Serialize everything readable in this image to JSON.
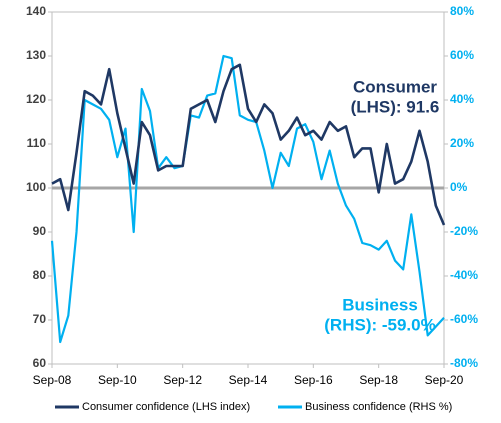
{
  "chart_data": {
    "type": "line",
    "categories": [
      "Sep-08",
      null,
      null,
      null,
      null,
      null,
      null,
      null,
      "Sep-10",
      null,
      null,
      null,
      null,
      null,
      null,
      null,
      "Sep-12",
      null,
      null,
      null,
      null,
      null,
      null,
      null,
      "Sep-14",
      null,
      null,
      null,
      null,
      null,
      null,
      null,
      "Sep-16",
      null,
      null,
      null,
      null,
      null,
      null,
      null,
      "Sep-18",
      null,
      null,
      null,
      null,
      null,
      null,
      null,
      "Sep-20"
    ],
    "series": [
      {
        "name": "Consumer confidence (LHS index)",
        "color": "#1f3864",
        "values": [
          101,
          102,
          95,
          108,
          122,
          121,
          119,
          127,
          117,
          109,
          101,
          115,
          112,
          104,
          105,
          105,
          105,
          118,
          119,
          120,
          115,
          122,
          127,
          128,
          118,
          115,
          119,
          117,
          111,
          113,
          116,
          112,
          113,
          111,
          115,
          113,
          114,
          107,
          109,
          109,
          99,
          110,
          101,
          102,
          106,
          113,
          106,
          96,
          91.6
        ]
      },
      {
        "name": "Business confidence (RHS %)",
        "color": "#00b0f0",
        "axis": "y2",
        "values": [
          -24,
          -70,
          -58,
          -20,
          40,
          38,
          36,
          31,
          14,
          27,
          -20,
          45,
          35,
          9,
          14,
          9,
          10,
          33,
          32,
          42,
          43,
          60,
          59,
          33,
          31,
          30,
          17,
          0,
          16,
          10,
          27,
          29,
          21,
          4,
          17,
          2,
          -8,
          -14,
          -25,
          -26,
          -28,
          -24,
          -33,
          -37,
          -12,
          -38,
          -67,
          -63,
          -59
        ]
      }
    ],
    "ylim": [
      60,
      140
    ],
    "yticks": [
      60,
      70,
      80,
      90,
      100,
      110,
      120,
      130,
      140
    ],
    "y2lim": [
      -80,
      80
    ],
    "y2ticks": [
      {
        "value": -80,
        "label": "-80%"
      },
      {
        "value": -60,
        "label": "-60%"
      },
      {
        "value": -40,
        "label": "-40%"
      },
      {
        "value": -20,
        "label": "-20%"
      },
      {
        "value": 0,
        "label": "0%"
      },
      {
        "value": 20,
        "label": "20%"
      },
      {
        "value": 40,
        "label": "40%"
      },
      {
        "value": 60,
        "label": "60%"
      },
      {
        "value": 80,
        "label": "80%"
      }
    ],
    "zero_line": true,
    "annotations": [
      {
        "lines": [
          "Consumer",
          "(LHS): 91.6"
        ],
        "color": "#1f3864"
      },
      {
        "lines": [
          "Business",
          "(RHS): -59.0%"
        ],
        "color": "#00b0f0"
      }
    ]
  }
}
